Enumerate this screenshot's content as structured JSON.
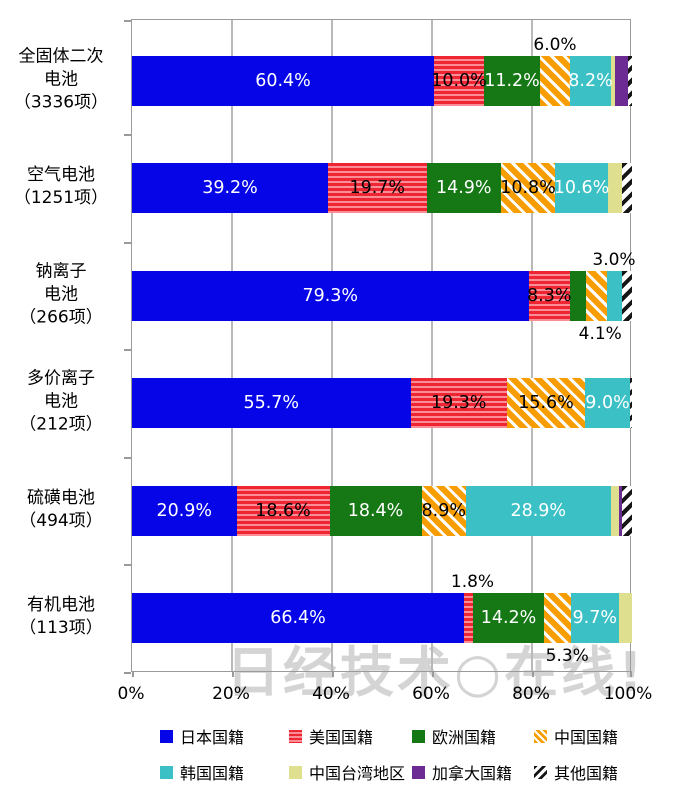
{
  "watermark": {
    "text": "日经技术○在线!"
  },
  "colors": {
    "japan": "#0505e8",
    "usa_base": "#ee2533",
    "usa_stripe": "#fb8d96",
    "europe": "#157815",
    "china_base": "#f79d00",
    "china_stripe": "#ffffff",
    "korea": "#3bc0c6",
    "taiwan": "#dfdf90",
    "canada": "#6b2b92",
    "other_stripe": "#161616",
    "gridline": "#b9b9b9",
    "axis": "#9a9a9a"
  },
  "chart_data": {
    "type": "bar",
    "subtype": "horizontal-100%-stacked",
    "unit": "%",
    "xlim": [
      0,
      100
    ],
    "x_ticks": [
      "0%",
      "20%",
      "40%",
      "60%",
      "80%",
      "100%"
    ],
    "grid": "vertical",
    "series_names": [
      "日本国籍",
      "美国国籍",
      "欧洲国籍",
      "中国国籍",
      "韩国国籍",
      "中国台湾地区",
      "加拿大国籍",
      "其他国籍"
    ],
    "categories": [
      {
        "name": "全固体二次电池（3336项）",
        "label_lines": [
          "全固体二次",
          "电池",
          "（3336项）"
        ],
        "segments": [
          {
            "key": "jp",
            "series": "日本国籍",
            "value": 60.4,
            "label": "60.4%",
            "pos": "in",
            "color": "#ffffff"
          },
          {
            "key": "us",
            "series": "美国国籍",
            "value": 10.0,
            "label": "10.0%",
            "pos": "in",
            "color": "#000000"
          },
          {
            "key": "eu",
            "series": "欧洲国籍",
            "value": 11.2,
            "label": "11.2%",
            "pos": "in",
            "color": "#ffffff"
          },
          {
            "key": "cn",
            "series": "中国国籍",
            "value": 6.0,
            "label": "6.0%",
            "pos": "above",
            "color": "#000000"
          },
          {
            "key": "kr",
            "series": "韩国国籍",
            "value": 8.2,
            "label": "8.2%",
            "pos": "in",
            "color": "#ffffff"
          },
          {
            "key": "tw",
            "series": "中国台湾地区",
            "value": 0.8
          },
          {
            "key": "ca",
            "series": "加拿大国籍",
            "value": 2.5
          },
          {
            "key": "other",
            "series": "其他国籍",
            "value": 0.9
          }
        ]
      },
      {
        "name": "空气电池（1251项）",
        "label_lines": [
          "空气电池",
          "（1251项）"
        ],
        "segments": [
          {
            "key": "jp",
            "series": "日本国籍",
            "value": 39.2,
            "label": "39.2%",
            "pos": "in",
            "color": "#ffffff"
          },
          {
            "key": "us",
            "series": "美国国籍",
            "value": 19.7,
            "label": "19.7%",
            "pos": "in",
            "color": "#000000"
          },
          {
            "key": "eu",
            "series": "欧洲国籍",
            "value": 14.9,
            "label": "14.9%",
            "pos": "in",
            "color": "#ffffff"
          },
          {
            "key": "cn",
            "series": "中国国籍",
            "value": 10.8,
            "label": "10.8%",
            "pos": "in",
            "color": "#000000"
          },
          {
            "key": "kr",
            "series": "韩国国籍",
            "value": 10.6,
            "label": "10.6%",
            "pos": "in",
            "color": "#ffffff"
          },
          {
            "key": "tw",
            "series": "中国台湾地区",
            "value": 2.7
          },
          {
            "key": "other",
            "series": "其他国籍",
            "value": 2.1
          }
        ]
      },
      {
        "name": "钠离子电池（266项）",
        "label_lines": [
          "钠离子",
          "电池",
          "（266项）"
        ],
        "segments": [
          {
            "key": "jp",
            "series": "日本国籍",
            "value": 79.3,
            "label": "79.3%",
            "pos": "in",
            "color": "#ffffff"
          },
          {
            "key": "us",
            "series": "美国国籍",
            "value": 8.3,
            "label": "8.3%",
            "pos": "in",
            "color": "#000000"
          },
          {
            "key": "eu",
            "series": "欧洲国籍",
            "value": 3.2
          },
          {
            "key": "cn",
            "series": "中国国籍",
            "value": 4.1,
            "label": "4.1%",
            "pos": "below",
            "color": "#000000",
            "dx": 4
          },
          {
            "key": "kr",
            "series": "韩国国籍",
            "value": 3.0,
            "label": "3.0%",
            "pos": "above",
            "color": "#000000"
          },
          {
            "key": "other",
            "series": "其他国籍",
            "value": 2.1
          }
        ]
      },
      {
        "name": "多价离子电池（212项）",
        "label_lines": [
          "多价离子",
          "电池",
          "（212项）"
        ],
        "segments": [
          {
            "key": "jp",
            "series": "日本国籍",
            "value": 55.7,
            "label": "55.7%",
            "pos": "in",
            "color": "#ffffff"
          },
          {
            "key": "us",
            "series": "美国国籍",
            "value": 19.3,
            "label": "19.3%",
            "pos": "in",
            "color": "#000000"
          },
          {
            "key": "cn",
            "series": "中国国籍",
            "value": 15.6,
            "label": "15.6%",
            "pos": "in",
            "color": "#000000"
          },
          {
            "key": "kr",
            "series": "韩国国籍",
            "value": 9.0,
            "label": "9.0%",
            "pos": "in",
            "color": "#ffffff"
          },
          {
            "key": "other",
            "series": "其他国籍",
            "value": 0.4
          }
        ]
      },
      {
        "name": "硫磺电池（494项）",
        "label_lines": [
          "硫磺电池",
          "（494项）"
        ],
        "segments": [
          {
            "key": "jp",
            "series": "日本国籍",
            "value": 20.9,
            "label": "20.9%",
            "pos": "in",
            "color": "#ffffff"
          },
          {
            "key": "us",
            "series": "美国国籍",
            "value": 18.6,
            "label": "18.6%",
            "pos": "in",
            "color": "#000000"
          },
          {
            "key": "eu",
            "series": "欧洲国籍",
            "value": 18.4,
            "label": "18.4%",
            "pos": "in",
            "color": "#ffffff"
          },
          {
            "key": "cn",
            "series": "中国国籍",
            "value": 8.9,
            "label": "8.9%",
            "pos": "in",
            "color": "#000000"
          },
          {
            "key": "kr",
            "series": "韩国国籍",
            "value": 28.9,
            "label": "28.9%",
            "pos": "in",
            "color": "#ffffff"
          },
          {
            "key": "tw",
            "series": "中国台湾地区",
            "value": 1.7
          },
          {
            "key": "ca",
            "series": "加拿大国籍",
            "value": 0.6
          },
          {
            "key": "other",
            "series": "其他国籍",
            "value": 2.0
          }
        ]
      },
      {
        "name": "有机电池（113项）",
        "label_lines": [
          "有机电池",
          "（113项）"
        ],
        "segments": [
          {
            "key": "jp",
            "series": "日本国籍",
            "value": 66.4,
            "label": "66.4%",
            "pos": "in",
            "color": "#ffffff"
          },
          {
            "key": "us",
            "series": "美国国籍",
            "value": 1.8,
            "label": "1.8%",
            "pos": "above",
            "color": "#000000",
            "dx": 4
          },
          {
            "key": "eu",
            "series": "欧洲国籍",
            "value": 14.2,
            "label": "14.2%",
            "pos": "in",
            "color": "#ffffff"
          },
          {
            "key": "cn",
            "series": "中国国籍",
            "value": 5.3,
            "label": "5.3%",
            "pos": "below",
            "color": "#000000",
            "dx": 10
          },
          {
            "key": "kr",
            "series": "韩国国籍",
            "value": 9.7,
            "label": "9.7%",
            "pos": "in",
            "color": "#ffffff"
          },
          {
            "key": "tw",
            "series": "中国台湾地区",
            "value": 2.6
          }
        ]
      }
    ],
    "legend": {
      "position": "bottom",
      "rows": [
        [
          {
            "key": "jp",
            "label": "日本国籍"
          },
          {
            "key": "us",
            "label": "美国国籍"
          },
          {
            "key": "eu",
            "label": "欧洲国籍"
          },
          {
            "key": "cn",
            "label": "中国国籍"
          }
        ],
        [
          {
            "key": "kr",
            "label": "韩国国籍"
          },
          {
            "key": "tw",
            "label": "中国台湾地区"
          },
          {
            "key": "ca",
            "label": "加拿大国籍"
          },
          {
            "key": "other",
            "label": "其他国籍"
          }
        ]
      ]
    }
  }
}
